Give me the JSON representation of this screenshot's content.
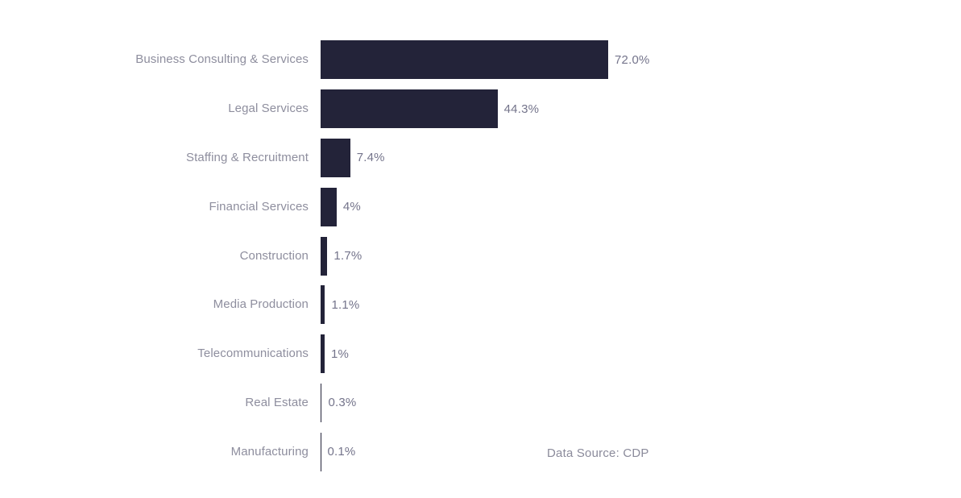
{
  "chart_data": {
    "type": "bar",
    "orientation": "horizontal",
    "title": "",
    "xlabel": "",
    "ylabel": "",
    "xlim": [
      0,
      72
    ],
    "grid": false,
    "legend": false,
    "bar_color": "#232339",
    "category_label_color": "#8e8e9e",
    "value_label_color": "#74748b",
    "categories": [
      "Business Consulting & Services",
      "Legal Services",
      "Staffing & Recruitment",
      "Financial Services",
      "Construction",
      "Media Production",
      "Telecommunications",
      "Real Estate",
      "Manufacturing"
    ],
    "values": [
      72.0,
      44.3,
      7.4,
      4,
      1.7,
      1.1,
      1,
      0.3,
      0.1
    ],
    "value_labels": [
      "72.0%",
      "44.3%",
      "7.4%",
      "4%",
      "1.7%",
      "1.1%",
      "1%",
      "0.3%",
      "0.1%"
    ]
  },
  "footer": {
    "data_source": "Data Source: CDP"
  }
}
